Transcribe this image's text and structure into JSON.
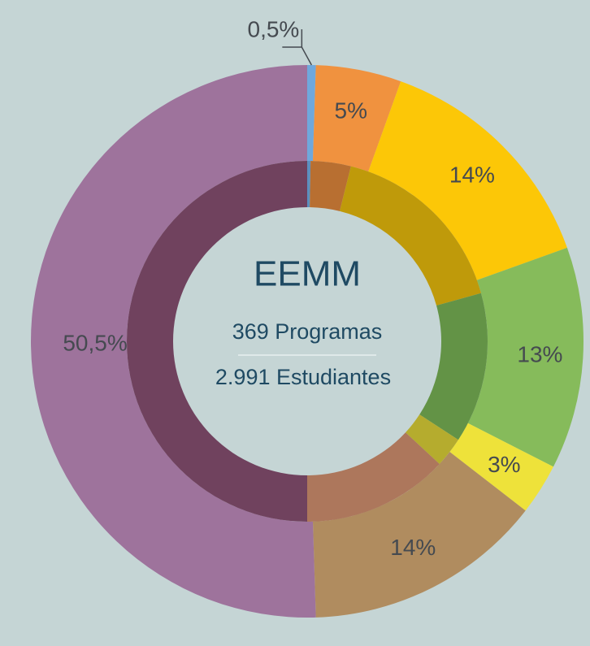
{
  "chart_data": {
    "type": "donut",
    "title": "EEMM",
    "center_lines": [
      "369 Programas",
      "2.991 Estudiantes"
    ],
    "values": [
      0.5,
      5,
      14,
      13,
      3,
      14,
      50.5
    ],
    "value_labels": [
      "0,5%",
      "5%",
      "14%",
      "13%",
      "3%",
      "14%",
      "50,5%"
    ],
    "colors": [
      "#6fa8dc",
      "#f0923f",
      "#fcc707",
      "#86bb5b",
      "#eee23a",
      "#b08c5f",
      "#9e739c"
    ],
    "inner_values": [
      0.3,
      3.6,
      16.8,
      13.5,
      2.7,
      13.1,
      50
    ],
    "inner_colors": [
      "#5c8fbf",
      "#b86f31",
      "#bf9a0a",
      "#639346",
      "#b5ac2e",
      "#ad775c",
      "#70425e"
    ]
  }
}
